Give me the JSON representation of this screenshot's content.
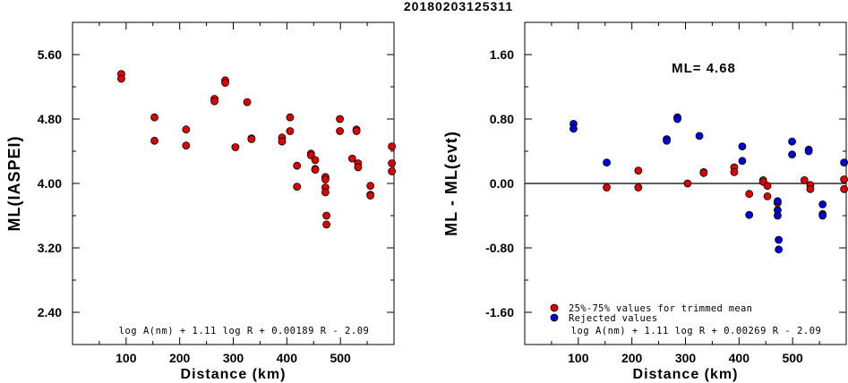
{
  "title": "20180203125311",
  "chart_data": [
    {
      "type": "scatter",
      "title": "",
      "xlabel": "Distance (km)",
      "ylabel": "ML(IASPEI)",
      "xlim": [
        0,
        600
      ],
      "ylim": [
        2.0,
        6.0
      ],
      "xticks": [
        "100",
        "200",
        "300",
        "400",
        "500"
      ],
      "xtick_values": [
        100,
        200,
        300,
        400,
        500
      ],
      "yticks": [
        "2.40",
        "3.20",
        "4.00",
        "4.80",
        "5.60"
      ],
      "ytick_values": [
        2.4,
        3.2,
        4.0,
        4.8,
        5.6
      ],
      "formula": "log A(nm) + 1.11 log R + 0.00189 R - 2.09",
      "series": [
        {
          "color": "#dd0000",
          "points": [
            [
              91,
              5.36
            ],
            [
              91,
              5.3
            ],
            [
              153,
              4.82
            ],
            [
              153,
              4.53
            ],
            [
              212,
              4.67
            ],
            [
              212,
              4.47
            ],
            [
              265,
              5.05
            ],
            [
              265,
              5.02
            ],
            [
              285,
              5.28
            ],
            [
              285,
              5.25
            ],
            [
              304,
              4.45
            ],
            [
              326,
              5.01
            ],
            [
              334,
              4.56
            ],
            [
              334,
              4.55
            ],
            [
              391,
              4.57
            ],
            [
              391,
              4.52
            ],
            [
              406,
              4.82
            ],
            [
              406,
              4.65
            ],
            [
              419,
              4.22
            ],
            [
              419,
              3.96
            ],
            [
              445,
              4.37
            ],
            [
              445,
              4.35
            ],
            [
              453,
              4.29
            ],
            [
              453,
              4.18
            ],
            [
              453,
              4.17
            ],
            [
              472,
              4.08
            ],
            [
              472,
              4.05
            ],
            [
              472,
              3.95
            ],
            [
              472,
              3.89
            ],
            [
              474,
              3.6
            ],
            [
              474,
              3.49
            ],
            [
              499,
              4.8
            ],
            [
              499,
              4.65
            ],
            [
              522,
              4.31
            ],
            [
              530,
              4.67
            ],
            [
              530,
              4.65
            ],
            [
              533,
              4.25
            ],
            [
              533,
              4.2
            ],
            [
              556,
              3.97
            ],
            [
              556,
              3.86
            ],
            [
              556,
              3.85
            ],
            [
              596,
              4.46
            ],
            [
              596,
              4.25
            ],
            [
              596,
              4.15
            ]
          ]
        }
      ]
    },
    {
      "type": "scatter",
      "title": "",
      "xlabel": "Distance (km)",
      "ylabel": "ML - ML(evt)",
      "xlim": [
        0,
        600
      ],
      "ylim": [
        -2.0,
        2.0
      ],
      "xticks": [
        "100",
        "200",
        "300",
        "400",
        "500"
      ],
      "xtick_values": [
        100,
        200,
        300,
        400,
        500
      ],
      "yticks": [
        "-1.60",
        "-0.80",
        "0.00",
        "0.80",
        "1.60"
      ],
      "ytick_values": [
        -1.6,
        -0.8,
        0.0,
        0.8,
        1.6
      ],
      "ml_label": "ML= 4.68",
      "formula": "log A(nm) + 1.11 log R + 0.00269 R - 2.09",
      "legend": [
        {
          "label": "25%-75% values for trimmed mean",
          "color": "#dd0000"
        },
        {
          "label": "Rejected values",
          "color": "#0000dd"
        }
      ],
      "legend_position": "bottom-left",
      "reference_line_y": 0.0,
      "series": [
        {
          "label": "25%-75% values for trimmed mean",
          "color": "#dd0000",
          "points": [
            [
              153,
              -0.05
            ],
            [
              212,
              0.16
            ],
            [
              212,
              -0.05
            ],
            [
              304,
              0.0
            ],
            [
              334,
              0.14
            ],
            [
              334,
              0.13
            ],
            [
              391,
              0.2
            ],
            [
              391,
              0.14
            ],
            [
              419,
              -0.13
            ],
            [
              445,
              0.04
            ],
            [
              445,
              0.02
            ],
            [
              453,
              -0.03
            ],
            [
              453,
              -0.16
            ],
            [
              472,
              -0.24
            ],
            [
              522,
              0.04
            ],
            [
              533,
              -0.02
            ],
            [
              533,
              -0.07
            ],
            [
              596,
              0.05
            ],
            [
              596,
              -0.07
            ]
          ]
        },
        {
          "label": "Rejected values",
          "color": "#0000dd",
          "points": [
            [
              91,
              0.74
            ],
            [
              91,
              0.68
            ],
            [
              153,
              0.26
            ],
            [
              265,
              0.55
            ],
            [
              265,
              0.53
            ],
            [
              285,
              0.82
            ],
            [
              285,
              0.8
            ],
            [
              326,
              0.59
            ],
            [
              406,
              0.46
            ],
            [
              406,
              0.28
            ],
            [
              419,
              -0.39
            ],
            [
              472,
              -0.22
            ],
            [
              472,
              -0.33
            ],
            [
              472,
              -0.4
            ],
            [
              474,
              -0.7
            ],
            [
              474,
              -0.82
            ],
            [
              499,
              0.52
            ],
            [
              499,
              0.36
            ],
            [
              530,
              0.42
            ],
            [
              530,
              0.4
            ],
            [
              556,
              -0.26
            ],
            [
              556,
              -0.38
            ],
            [
              556,
              -0.4
            ],
            [
              596,
              0.26
            ]
          ]
        }
      ]
    }
  ]
}
